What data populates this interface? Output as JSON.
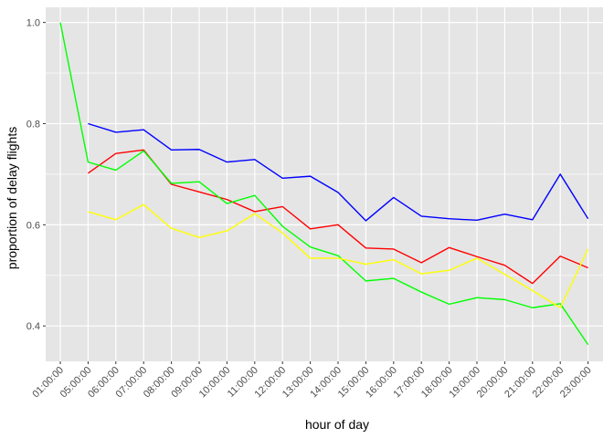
{
  "chart_data": {
    "type": "line",
    "title": "",
    "xlabel": "hour of day",
    "ylabel": "proportion of delay flights",
    "categories": [
      "01:00:00",
      "05:00:00",
      "06:00:00",
      "07:00:00",
      "08:00:00",
      "09:00:00",
      "10:00:00",
      "11:00:00",
      "12:00:00",
      "13:00:00",
      "14:00:00",
      "15:00:00",
      "16:00:00",
      "17:00:00",
      "18:00:00",
      "19:00:00",
      "20:00:00",
      "21:00:00",
      "22:00:00",
      "23:00:00"
    ],
    "ylim": [
      0.33,
      1.03
    ],
    "yticks": [
      0.4,
      0.6,
      0.8,
      1.0
    ],
    "ytick_labels": [
      "0.4",
      "0.6",
      "0.8",
      "1.0"
    ],
    "grid": true,
    "legend": "none",
    "panel_background": "#e5e5e5",
    "grid_color": "#ffffff",
    "series": [
      {
        "color": "#0000ff",
        "values": [
          null,
          0.8,
          0.783,
          0.788,
          0.748,
          0.749,
          0.724,
          0.729,
          0.692,
          0.696,
          0.664,
          0.608,
          0.654,
          0.617,
          0.612,
          0.609,
          0.621,
          0.61,
          0.7,
          0.612
        ]
      },
      {
        "color": "#ff0000",
        "values": [
          null,
          0.702,
          0.741,
          0.748,
          0.68,
          0.665,
          0.65,
          0.626,
          0.636,
          0.592,
          0.6,
          0.554,
          0.552,
          0.525,
          0.555,
          0.537,
          0.52,
          0.484,
          0.538,
          0.515
        ]
      },
      {
        "color": "#00ff00",
        "values": [
          1.0,
          0.724,
          0.708,
          0.746,
          0.682,
          0.685,
          0.642,
          0.658,
          0.597,
          0.556,
          0.539,
          0.489,
          0.494,
          0.467,
          0.443,
          0.456,
          0.452,
          0.436,
          0.444,
          0.363
        ]
      },
      {
        "color": "#ffff00",
        "values": [
          null,
          0.626,
          0.61,
          0.64,
          0.593,
          0.575,
          0.588,
          0.622,
          0.584,
          0.534,
          0.534,
          0.522,
          0.531,
          0.503,
          0.51,
          0.534,
          0.502,
          0.47,
          0.436,
          0.552
        ]
      }
    ]
  }
}
